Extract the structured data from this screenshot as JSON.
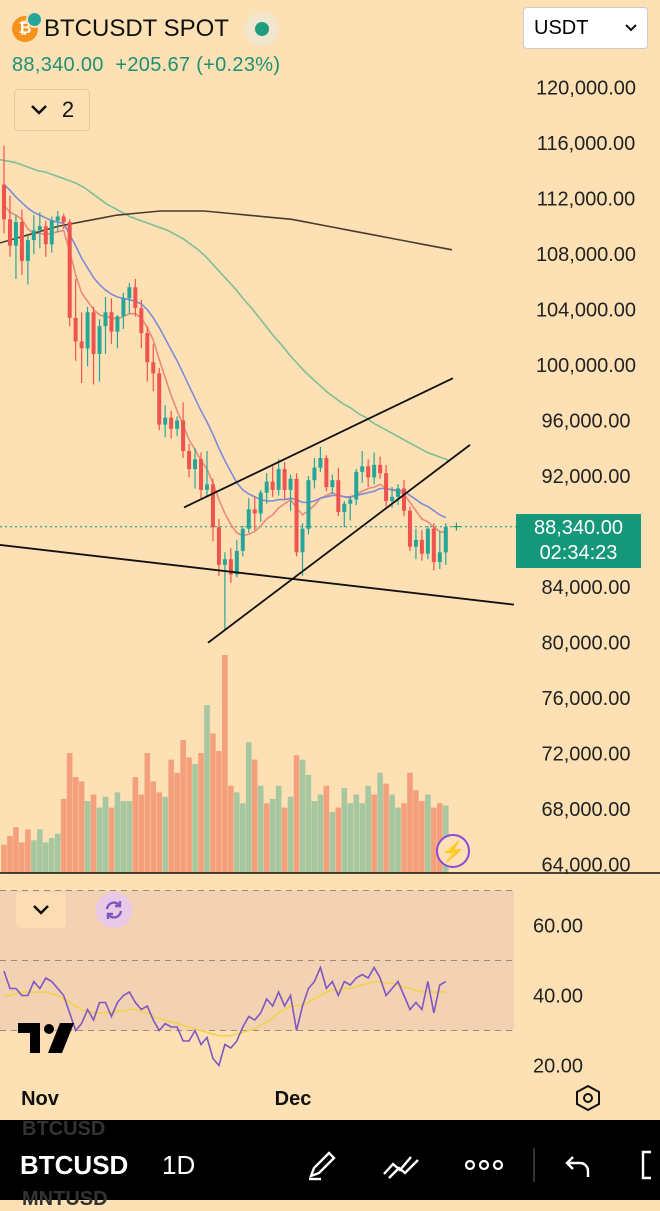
{
  "header": {
    "coin_glyph": "₿",
    "title": "BTCUSDT SPOT",
    "quote": "88,340.00  +205.67 (+0.23%)",
    "indicator_count": "2"
  },
  "currency_select": {
    "value": "USDT"
  },
  "price_tag": {
    "price": "88,340.00",
    "countdown": "02:34:23"
  },
  "colors": {
    "background": "#fde0b4",
    "up": "#26a69a",
    "down": "#ef5350",
    "volume_up": "#a7c7a0",
    "volume_down": "#f4a07c",
    "ma_red": "#e98a7c",
    "ma_blue": "#7e8bd8",
    "ma_green": "#7dbf96",
    "ma_black": "#4a3a30",
    "rsi_line": "#7e57c2",
    "rsi_ma": "#f2d448"
  },
  "icons": [
    "bitcoin-icon",
    "live-indicator-icon",
    "chevron-down-icon",
    "lightning-icon",
    "refresh-icon",
    "tradingview-logo-icon",
    "settings-hexagon-icon",
    "pen-icon",
    "drawing-tools-icon",
    "more-icon",
    "undo-icon"
  ],
  "chart_data": {
    "type": "candlestick",
    "price_axis": [
      "120,000.00",
      "116,000.00",
      "112,000.00",
      "108,000.00",
      "104,000.00",
      "100,000.00",
      "96,000.00",
      "92,000.00",
      "84,000.00",
      "80,000.00",
      "76,000.00",
      "72,000.00",
      "68,000.00",
      "64,000.00"
    ],
    "rsi_axis": [
      "60.00",
      "40.00",
      "20.00"
    ],
    "time_axis": [
      "Nov",
      "Dec"
    ],
    "ylim": [
      64000,
      121000
    ],
    "candles": [
      [
        113000,
        115800,
        109500,
        110500
      ],
      [
        110500,
        112200,
        107800,
        108600
      ],
      [
        108600,
        110800,
        106200,
        110300
      ],
      [
        110300,
        111200,
        106500,
        107500
      ],
      [
        107500,
        109300,
        105800,
        109000
      ],
      [
        109000,
        110800,
        108000,
        109700
      ],
      [
        109700,
        111000,
        108400,
        110000
      ],
      [
        110000,
        110400,
        107800,
        108700
      ],
      [
        108700,
        110700,
        108100,
        110400
      ],
      [
        110400,
        111100,
        109600,
        110700
      ],
      [
        110700,
        110900,
        109800,
        110300
      ],
      [
        110300,
        110500,
        102800,
        103400
      ],
      [
        103400,
        106200,
        100300,
        101700
      ],
      [
        101700,
        103800,
        98700,
        101200
      ],
      [
        101200,
        104200,
        99900,
        103800
      ],
      [
        103800,
        104200,
        98600,
        100800
      ],
      [
        100800,
        103300,
        98800,
        102800
      ],
      [
        102800,
        104900,
        100800,
        103800
      ],
      [
        103800,
        104800,
        101500,
        102400
      ],
      [
        102400,
        103600,
        101200,
        103500
      ],
      [
        103500,
        105200,
        102600,
        104800
      ],
      [
        104800,
        105900,
        103700,
        105600
      ],
      [
        105600,
        106200,
        103500,
        104100
      ],
      [
        104100,
        104700,
        101200,
        102300
      ],
      [
        102300,
        102800,
        98800,
        100200
      ],
      [
        100200,
        101500,
        98100,
        99400
      ],
      [
        99400,
        99800,
        95300,
        95700
      ],
      [
        95700,
        97100,
        94800,
        96200
      ],
      [
        96200,
        96700,
        94700,
        95400
      ],
      [
        95400,
        96300,
        94900,
        96000
      ],
      [
        96000,
        97300,
        93300,
        93800
      ],
      [
        93800,
        94300,
        91900,
        92500
      ],
      [
        92500,
        94000,
        91100,
        93200
      ],
      [
        93200,
        93700,
        90400,
        91000
      ],
      [
        91000,
        93800,
        90500,
        91400
      ],
      [
        91400,
        91800,
        87300,
        88300
      ],
      [
        88300,
        88900,
        84800,
        85600
      ],
      [
        85600,
        86500,
        80900,
        86000
      ],
      [
        86000,
        86800,
        84300,
        84900
      ],
      [
        84900,
        87400,
        84700,
        86600
      ],
      [
        86600,
        88400,
        86200,
        88200
      ],
      [
        88200,
        90400,
        87900,
        89600
      ],
      [
        89600,
        90500,
        88100,
        89300
      ],
      [
        89300,
        91000,
        88700,
        90800
      ],
      [
        90800,
        92200,
        90000,
        91600
      ],
      [
        91600,
        92700,
        90500,
        91000
      ],
      [
        91000,
        93200,
        90600,
        92500
      ],
      [
        92500,
        93000,
        90300,
        91000
      ],
      [
        91000,
        92100,
        89500,
        91800
      ],
      [
        91800,
        92200,
        86200,
        86500
      ],
      [
        86500,
        88600,
        84800,
        88200
      ],
      [
        88200,
        92000,
        87800,
        91700
      ],
      [
        91700,
        93300,
        91100,
        92600
      ],
      [
        92600,
        94100,
        92300,
        93300
      ],
      [
        93300,
        93500,
        90900,
        91200
      ],
      [
        91200,
        92100,
        90700,
        91700
      ],
      [
        91700,
        92600,
        89100,
        89400
      ],
      [
        89400,
        90200,
        88300,
        90000
      ],
      [
        90000,
        90500,
        88800,
        90300
      ],
      [
        90300,
        92500,
        89900,
        92300
      ],
      [
        92300,
        93800,
        91500,
        92700
      ],
      [
        92700,
        93200,
        91200,
        91900
      ],
      [
        91900,
        93700,
        91400,
        92800
      ],
      [
        92800,
        93400,
        91800,
        92200
      ],
      [
        92200,
        92800,
        89800,
        90200
      ],
      [
        90200,
        91200,
        89700,
        90500
      ],
      [
        90500,
        91400,
        89900,
        91100
      ],
      [
        91100,
        91700,
        89100,
        89500
      ],
      [
        89500,
        89800,
        86600,
        86900
      ],
      [
        86900,
        88200,
        86000,
        87400
      ],
      [
        87400,
        88100,
        85900,
        86400
      ],
      [
        86400,
        88400,
        86000,
        88200
      ],
      [
        88200,
        88600,
        85200,
        85800
      ],
      [
        85800,
        88000,
        85300,
        86500
      ],
      [
        86500,
        88600,
        85600,
        88340
      ]
    ],
    "moving_averages": [
      {
        "label": "ma-red",
        "values": [
          111500,
          111000,
          110800,
          110500,
          109800,
          109500,
          109500,
          109400,
          109500,
          109600,
          109700,
          108200,
          106500,
          105200,
          104600,
          104000,
          103600,
          103500,
          103400,
          103300,
          103500,
          103700,
          103700,
          103400,
          102700,
          101800,
          100400,
          99100,
          97800,
          96700,
          95700,
          94600,
          93900,
          93100,
          92500,
          91500,
          90300,
          89300,
          88500,
          87900,
          87700,
          87800,
          88000,
          88400,
          88900,
          89200,
          89700,
          90000,
          90300,
          89700,
          89200,
          89500,
          89900,
          90400,
          90600,
          90800,
          90600,
          90500,
          90400,
          90700,
          90900,
          91100,
          91200,
          91400,
          91100,
          91000,
          90900,
          90700,
          90100,
          89500,
          88900,
          88700,
          88300,
          88000,
          87900
        ]
      },
      {
        "label": "ma-blue",
        "values": [
          113000,
          112600,
          112100,
          111700,
          111300,
          111000,
          110800,
          110600,
          110400,
          110300,
          110200,
          109400,
          108600,
          107700,
          107000,
          106300,
          105800,
          105400,
          105100,
          104900,
          104800,
          104700,
          104600,
          104400,
          104000,
          103400,
          102700,
          101900,
          101100,
          100300,
          99400,
          98500,
          97600,
          96700,
          95900,
          95000,
          94000,
          93100,
          92300,
          91500,
          91000,
          90700,
          90500,
          90300,
          90200,
          90200,
          90300,
          90300,
          90400,
          90300,
          90100,
          90100,
          90200,
          90400,
          90500,
          90600,
          90600,
          90500,
          90500,
          90600,
          90700,
          90800,
          90900,
          91100,
          91100,
          91000,
          91000,
          90900,
          90600,
          90300,
          90000,
          89800,
          89500,
          89200,
          89000
        ]
      },
      {
        "label": "ma-green",
        "values": [
          114800,
          114700,
          114600,
          114400,
          114200,
          114000,
          113900,
          113700,
          113500,
          113300,
          113100,
          112800,
          112400,
          112000,
          111600,
          111300,
          111000,
          110700,
          110500,
          110300,
          110100,
          109900,
          109700,
          109400,
          109100,
          108700,
          108300,
          107800,
          107200,
          106600,
          106000,
          105400,
          104700,
          104100,
          103400,
          102700,
          102000,
          101400,
          100700,
          100100,
          99500,
          99000,
          98500,
          98000,
          97600,
          97200,
          96900,
          96500,
          96200,
          95800,
          95500,
          95200,
          94900,
          94600,
          94300,
          94000,
          93700,
          93500,
          93300,
          93100
        ]
      },
      {
        "label": "ma-black",
        "values": [
          108800,
          109100,
          109400,
          109700,
          110000,
          110200,
          110400,
          110600,
          110800,
          110900,
          111000,
          111100,
          111100,
          111100,
          111100,
          111000,
          110900,
          110800,
          110700,
          110600,
          110500,
          110300,
          110100,
          109900,
          109700,
          109500,
          109300,
          109100,
          108900,
          108700,
          108500,
          108300
        ]
      }
    ],
    "volume": [
      {
        "v": 0.13,
        "up": false
      },
      {
        "v": 0.17,
        "up": false
      },
      {
        "v": 0.21,
        "up": false
      },
      {
        "v": 0.14,
        "up": false
      },
      {
        "v": 0.2,
        "up": false
      },
      {
        "v": 0.15,
        "up": true
      },
      {
        "v": 0.2,
        "up": true
      },
      {
        "v": 0.14,
        "up": true
      },
      {
        "v": 0.16,
        "up": true
      },
      {
        "v": 0.18,
        "up": true
      },
      {
        "v": 0.34,
        "up": false
      },
      {
        "v": 0.55,
        "up": false
      },
      {
        "v": 0.44,
        "up": false
      },
      {
        "v": 0.42,
        "up": false
      },
      {
        "v": 0.33,
        "up": true
      },
      {
        "v": 0.36,
        "up": false
      },
      {
        "v": 0.3,
        "up": true
      },
      {
        "v": 0.35,
        "up": true
      },
      {
        "v": 0.3,
        "up": false
      },
      {
        "v": 0.37,
        "up": true
      },
      {
        "v": 0.33,
        "up": true
      },
      {
        "v": 0.33,
        "up": true
      },
      {
        "v": 0.44,
        "up": false
      },
      {
        "v": 0.36,
        "up": false
      },
      {
        "v": 0.55,
        "up": false
      },
      {
        "v": 0.42,
        "up": false
      },
      {
        "v": 0.37,
        "up": false
      },
      {
        "v": 0.35,
        "up": true
      },
      {
        "v": 0.52,
        "up": false
      },
      {
        "v": 0.46,
        "up": false
      },
      {
        "v": 0.61,
        "up": false
      },
      {
        "v": 0.53,
        "up": false
      },
      {
        "v": 0.5,
        "up": true
      },
      {
        "v": 0.55,
        "up": false
      },
      {
        "v": 0.77,
        "up": true
      },
      {
        "v": 0.64,
        "up": false
      },
      {
        "v": 0.56,
        "up": false
      },
      {
        "v": 1,
        "up": false
      },
      {
        "v": 0.4,
        "up": false
      },
      {
        "v": 0.37,
        "up": true
      },
      {
        "v": 0.32,
        "up": true
      },
      {
        "v": 0.6,
        "up": true
      },
      {
        "v": 0.52,
        "up": false
      },
      {
        "v": 0.4,
        "up": true
      },
      {
        "v": 0.32,
        "up": false
      },
      {
        "v": 0.34,
        "up": true
      },
      {
        "v": 0.4,
        "up": true
      },
      {
        "v": 0.3,
        "up": false
      },
      {
        "v": 0.35,
        "up": true
      },
      {
        "v": 0.54,
        "up": false
      },
      {
        "v": 0.52,
        "up": true
      },
      {
        "v": 0.45,
        "up": true
      },
      {
        "v": 0.33,
        "up": true
      },
      {
        "v": 0.36,
        "up": true
      },
      {
        "v": 0.4,
        "up": false
      },
      {
        "v": 0.28,
        "up": true
      },
      {
        "v": 0.3,
        "up": false
      },
      {
        "v": 0.39,
        "up": true
      },
      {
        "v": 0.32,
        "up": true
      },
      {
        "v": 0.36,
        "up": true
      },
      {
        "v": 0.32,
        "up": true
      },
      {
        "v": 0.4,
        "up": true
      },
      {
        "v": 0.36,
        "up": false
      },
      {
        "v": 0.46,
        "up": true
      },
      {
        "v": 0.41,
        "up": false
      },
      {
        "v": 0.36,
        "up": true
      },
      {
        "v": 0.3,
        "up": true
      },
      {
        "v": 0.32,
        "up": false
      },
      {
        "v": 0.46,
        "up": false
      },
      {
        "v": 0.38,
        "up": false
      },
      {
        "v": 0.33,
        "up": false
      },
      {
        "v": 0.36,
        "up": true
      },
      {
        "v": 0.3,
        "up": false
      },
      {
        "v": 0.32,
        "up": false
      },
      {
        "v": 0.31,
        "up": true
      }
    ],
    "rsi": [
      47,
      42,
      42,
      40,
      40,
      44,
      42,
      45,
      44,
      42,
      40,
      35,
      30,
      32,
      36,
      33,
      38,
      38,
      34,
      38,
      40,
      41,
      38,
      36,
      37,
      33,
      30,
      32,
      31,
      31,
      27,
      27,
      30,
      26,
      28,
      22,
      20,
      26,
      25,
      27,
      31,
      34,
      33,
      35,
      39,
      37,
      41,
      37,
      40,
      30,
      37,
      42,
      44,
      48,
      42,
      44,
      40,
      44,
      43,
      45,
      46,
      45,
      48,
      45,
      40,
      42,
      44,
      40,
      36,
      38,
      36,
      44,
      35,
      43,
      44
    ],
    "rsi_ma": [
      40,
      40,
      40.5,
      41,
      41,
      41,
      41,
      41,
      40.5,
      40,
      39,
      38,
      37,
      36,
      35.5,
      35,
      35,
      35,
      35,
      35.5,
      35.5,
      36,
      36,
      35.5,
      35,
      34,
      33.5,
      33,
      32.5,
      32,
      31.5,
      31,
      30.5,
      30,
      29.5,
      29,
      28.5,
      28.5,
      28.5,
      29,
      29.5,
      30,
      30.5,
      31.5,
      32.5,
      33.5,
      35,
      36,
      37,
      37,
      37.5,
      38,
      39,
      40,
      41,
      41.5,
      41.5,
      42,
      42,
      42.5,
      43,
      43.5,
      44,
      44,
      43.5,
      43.5,
      43,
      42.5,
      42,
      41.5,
      41,
      41,
      41,
      41,
      41
    ],
    "rsi_bands": [
      70,
      50,
      30
    ],
    "rsi_ylim": [
      18,
      62
    ],
    "trendlines": [
      {
        "label": "lower-support",
        "points": [
          [
            0,
            87000
          ],
          [
            74,
            83300
          ]
        ]
      },
      {
        "label": "wedge-lower",
        "points": [
          [
            37,
            80900
          ],
          [
            77,
            93900
          ]
        ]
      },
      {
        "label": "wedge-upper",
        "points": [
          [
            30,
            89700
          ],
          [
            74,
            98800
          ]
        ]
      }
    ]
  },
  "toolbar": {
    "ghost_top": "BTCUSD",
    "symbol": "BTCUSD",
    "interval": "1D",
    "ghost_bottom": "MNTUSD"
  }
}
